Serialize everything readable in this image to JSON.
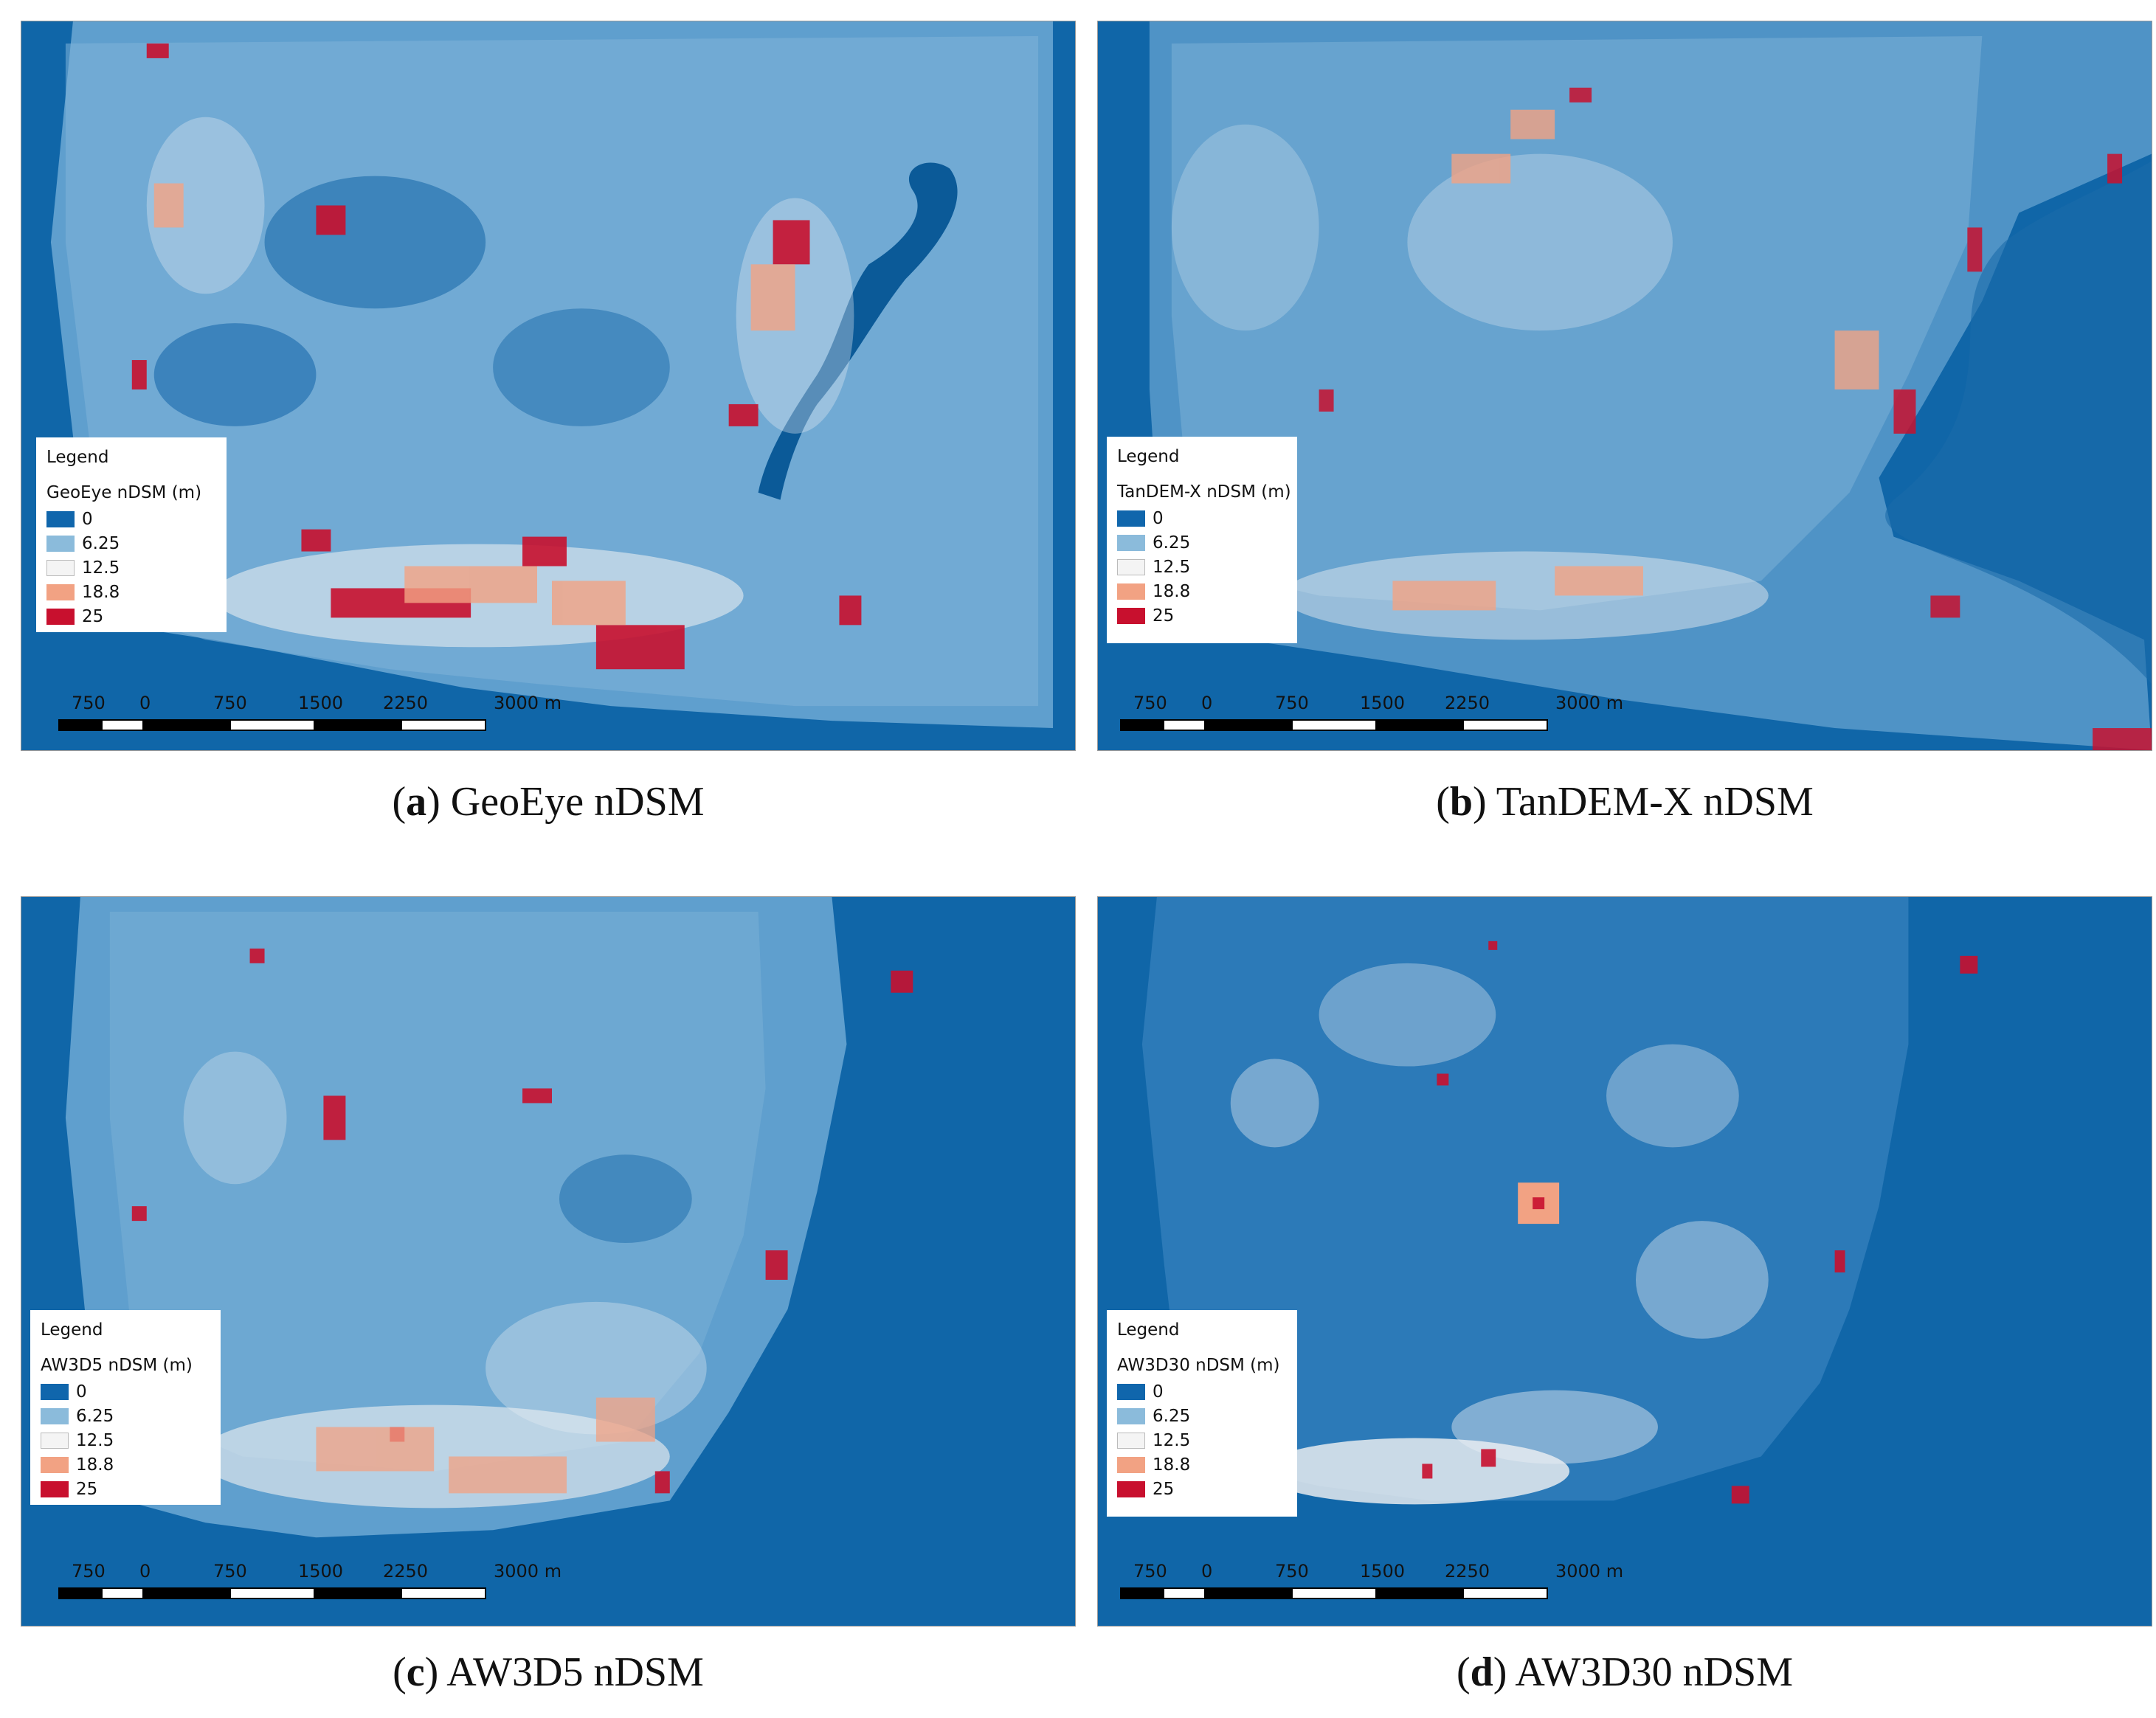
{
  "legend_heading": "Legend",
  "legend_values": [
    "0",
    "6.25",
    "12.5",
    "18.8",
    "25"
  ],
  "legend_colors": [
    "#1066ac",
    "#8bbbdb",
    "#f4f4f4",
    "#f2a283",
    "#c8102e"
  ],
  "scale_labels": [
    "750",
    "0",
    "750",
    "1500",
    "2250",
    "3000 m"
  ],
  "panels": [
    {
      "letter": "a",
      "caption_text": "GeoEye nDSM",
      "layer_title": "GeoEye nDSM (m)"
    },
    {
      "letter": "b",
      "caption_text": "TanDEM-X nDSM",
      "layer_title": "TanDEM-X nDSM (m)"
    },
    {
      "letter": "c",
      "caption_text": "AW3D5 nDSM",
      "layer_title": "AW3D5 nDSM (m)"
    },
    {
      "letter": "d",
      "caption_text": "AW3D30 nDSM",
      "layer_title": "AW3D30 nDSM (m)"
    }
  ]
}
